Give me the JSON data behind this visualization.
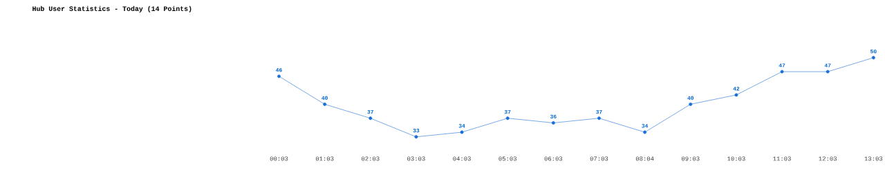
{
  "chart_data": {
    "type": "line",
    "title": "Hub User Statistics - Today (14 Points)",
    "categories": [
      "00:03",
      "01:03",
      "02:03",
      "03:03",
      "04:03",
      "05:03",
      "06:03",
      "07:03",
      "08:04",
      "09:03",
      "10:03",
      "11:03",
      "12:03",
      "13:03"
    ],
    "values": [
      46,
      40,
      37,
      33,
      34,
      37,
      36,
      37,
      34,
      40,
      42,
      47,
      47,
      50
    ],
    "color": "#1a6fd6",
    "marker": "circle",
    "line_style": "solid",
    "data_labels": true
  }
}
